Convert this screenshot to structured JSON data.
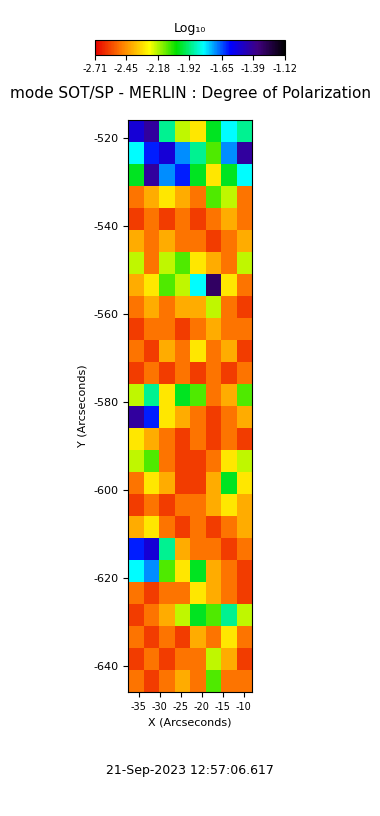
{
  "chart_data": {
    "type": "heatmap",
    "title": "mode SOT/SP - MERLIN : Degree of Polarization",
    "x_label": "X (Arcseconds)",
    "y_label": "Y (Arcseconds)",
    "annotations": [
      "21-Sep-2023 12:57:06.617"
    ],
    "xlim": [
      -37.5,
      -8.0
    ],
    "ylim": [
      -646,
      -516
    ],
    "xticks": [
      -35,
      -30,
      -25,
      -20,
      -15,
      -10
    ],
    "yticks": [
      -640,
      -620,
      -600,
      -580,
      -560,
      -540,
      -520
    ],
    "x_edges": [
      -37.5,
      -33.8,
      -30.1,
      -26.4,
      -22.7,
      -19.0,
      -15.3,
      -11.6,
      -8.0
    ],
    "y_edges": [
      -516,
      -521,
      -526,
      -531,
      -536,
      -541,
      -546,
      -551,
      -556,
      -561,
      -566,
      -571,
      -576,
      -581,
      -586,
      -591,
      -596,
      -601,
      -606,
      -611,
      -616,
      -621,
      -626,
      -631,
      -636,
      -641,
      -646
    ],
    "cells": [
      [
        -1.5,
        -1.4,
        -1.9,
        -2.2,
        -2.3,
        -2.0,
        -1.8,
        -1.9
      ],
      [
        -1.8,
        -1.6,
        -1.5,
        -1.7,
        -1.9,
        -2.1,
        -1.7,
        -1.4
      ],
      [
        -2.0,
        -1.4,
        -1.7,
        -1.6,
        -2.0,
        -2.3,
        -2.0,
        -1.8
      ],
      [
        -2.5,
        -2.4,
        -2.3,
        -2.4,
        -2.5,
        -2.1,
        -2.2,
        -2.5
      ],
      [
        -2.6,
        -2.5,
        -2.6,
        -2.5,
        -2.6,
        -2.5,
        -2.4,
        -2.5
      ],
      [
        -2.4,
        -2.5,
        -2.4,
        -2.5,
        -2.5,
        -2.6,
        -2.5,
        -2.4
      ],
      [
        -2.2,
        -2.5,
        -2.2,
        -2.1,
        -2.3,
        -2.4,
        -2.5,
        -2.2
      ],
      [
        -2.4,
        -2.3,
        -2.1,
        -2.2,
        -1.8,
        -1.3,
        -2.3,
        -2.5
      ],
      [
        -2.5,
        -2.4,
        -2.5,
        -2.4,
        -2.4,
        -2.2,
        -2.5,
        -2.6
      ],
      [
        -2.6,
        -2.5,
        -2.5,
        -2.6,
        -2.5,
        -2.4,
        -2.5,
        -2.5
      ],
      [
        -2.5,
        -2.6,
        -2.4,
        -2.5,
        -2.3,
        -2.5,
        -2.4,
        -2.6
      ],
      [
        -2.6,
        -2.5,
        -2.6,
        -2.5,
        -2.6,
        -2.5,
        -2.6,
        -2.5
      ],
      [
        -2.2,
        -1.9,
        -2.3,
        -2.0,
        -2.1,
        -2.5,
        -2.4,
        -2.1
      ],
      [
        -1.4,
        -1.6,
        -2.3,
        -2.4,
        -2.5,
        -2.6,
        -2.5,
        -2.4
      ],
      [
        -2.3,
        -2.4,
        -2.5,
        -2.6,
        -2.5,
        -2.6,
        -2.5,
        -2.6
      ],
      [
        -2.2,
        -2.1,
        -2.5,
        -2.6,
        -2.6,
        -2.5,
        -2.3,
        -2.2
      ],
      [
        -2.5,
        -2.3,
        -2.4,
        -2.6,
        -2.6,
        -2.4,
        -2.0,
        -2.3
      ],
      [
        -2.6,
        -2.5,
        -2.6,
        -2.5,
        -2.5,
        -2.4,
        -2.3,
        -2.4
      ],
      [
        -2.4,
        -2.3,
        -2.5,
        -2.6,
        -2.5,
        -2.6,
        -2.5,
        -2.4
      ],
      [
        -1.6,
        -1.5,
        -1.9,
        -2.4,
        -2.5,
        -2.5,
        -2.6,
        -2.5
      ],
      [
        -1.8,
        -1.7,
        -2.1,
        -2.3,
        -2.0,
        -2.4,
        -2.5,
        -2.6
      ],
      [
        -2.5,
        -2.6,
        -2.5,
        -2.5,
        -2.3,
        -2.4,
        -2.5,
        -2.6
      ],
      [
        -2.6,
        -2.5,
        -2.4,
        -2.2,
        -2.0,
        -2.1,
        -1.9,
        -2.2
      ],
      [
        -2.5,
        -2.6,
        -2.5,
        -2.6,
        -2.4,
        -2.5,
        -2.3,
        -2.5
      ],
      [
        -2.6,
        -2.5,
        -2.6,
        -2.5,
        -2.5,
        -2.2,
        -2.4,
        -2.6
      ],
      [
        -2.5,
        -2.6,
        -2.5,
        -2.4,
        -2.5,
        -2.1,
        -2.5,
        -2.5
      ]
    ],
    "colorbar": {
      "label": "Log₁₀",
      "range": [
        -2.71,
        -1.12
      ],
      "ticks": [
        -2.71,
        -2.45,
        -2.18,
        -1.92,
        -1.65,
        -1.39,
        -1.12
      ]
    }
  }
}
